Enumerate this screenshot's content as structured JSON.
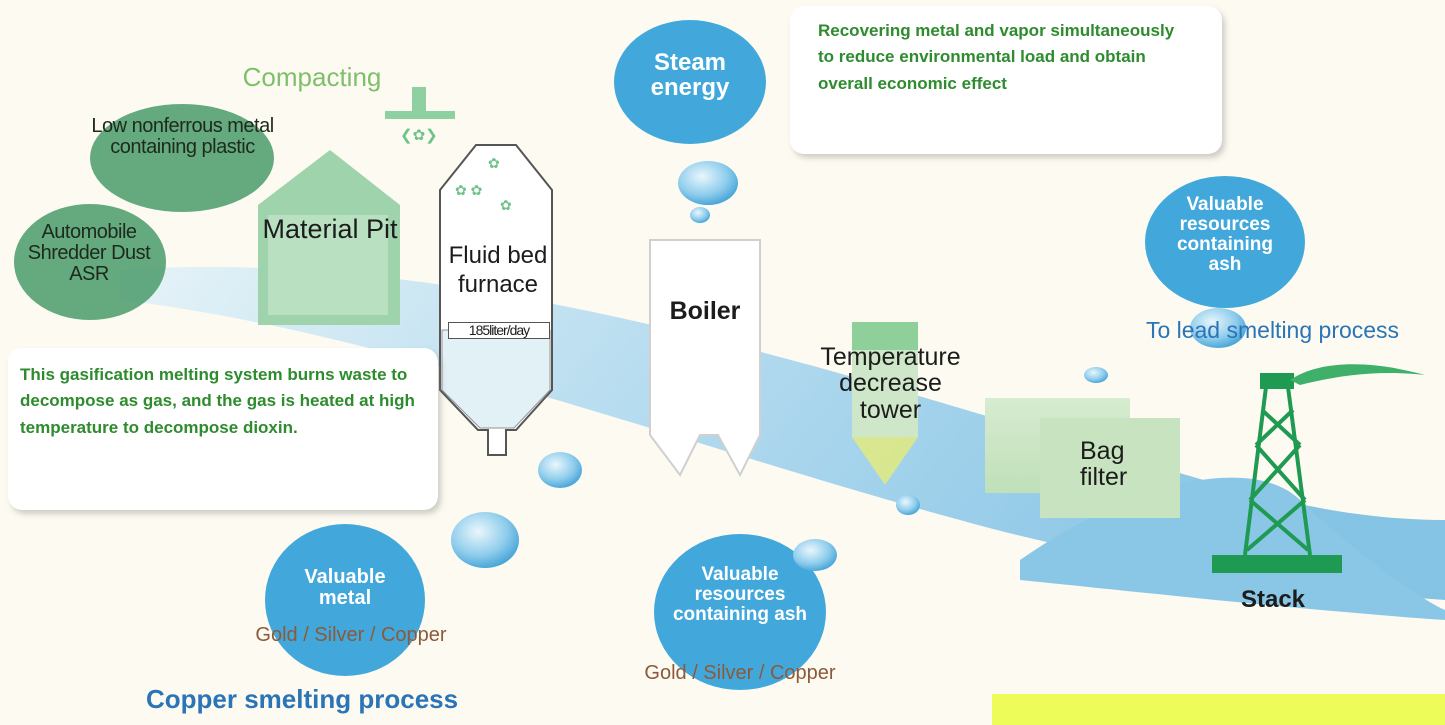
{
  "labels": {
    "compacting": "Compacting",
    "low_nonferrous": "Low nonferrous metal containing plastic",
    "asr": "Automobile Shredder Dust ASR",
    "material_pit": "Material Pit",
    "fluid_bed_furnace": "Fluid bed furnace",
    "furnace_capacity": "185liter/day",
    "steam_energy": "Steam energy",
    "boiler": "Boiler",
    "temperature_tower": "Temperature decrease tower",
    "bag_filter": "Bag filter",
    "stack": "Stack",
    "valuable_resources_ash_right": "Valuable resources containing ash",
    "to_lead_smelting": "To lead smelting process",
    "valuable_metal": "Valuable metal",
    "gold_silver_copper_left": "Gold / Silver / Copper",
    "valuable_resources_ash_center": "Valuable resources containing ash",
    "gold_silver_copper_center": "Gold / Silver / Copper",
    "copper_smelting": "Copper smelting process"
  },
  "notes": {
    "recovering": "Recovering metal and vapor simultaneously to reduce environmental load and obtain overall economic effect",
    "gasification": "This gasification melting system burns waste to decompose as gas, and the gas is heated at high temperature to decompose dioxin."
  },
  "colors": {
    "background": "#fdfbf1",
    "flow_blue": "#a9d6ee",
    "bubble_blue": "#42a8dc",
    "oval_green": "#4a9a6a",
    "pit_green": "#9fd3ac",
    "stack_green": "#1f9a52",
    "note_green": "#2e8b2e",
    "highlight": "#eefc5a"
  }
}
